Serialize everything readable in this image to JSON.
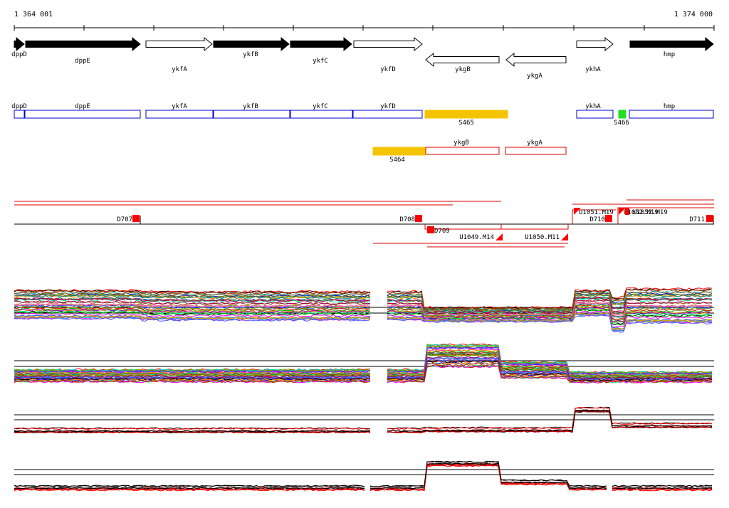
{
  "ruler": {
    "start_label": "1 364 001",
    "end_label": "1 374 000",
    "start_bp": 1364001,
    "end_bp": 1374000
  },
  "genes": [
    {
      "name": "dppD",
      "strand": "+",
      "fill": "black"
    },
    {
      "name": "dppE",
      "strand": "+",
      "fill": "black"
    },
    {
      "name": "ykfA",
      "strand": "+",
      "fill": "white"
    },
    {
      "name": "ykfB",
      "strand": "+",
      "fill": "black"
    },
    {
      "name": "ykfC",
      "strand": "+",
      "fill": "black"
    },
    {
      "name": "ykfD",
      "strand": "+",
      "fill": "white"
    },
    {
      "name": "ykgB",
      "strand": "-",
      "fill": "white"
    },
    {
      "name": "ykgA",
      "strand": "-",
      "fill": "white"
    },
    {
      "name": "ykhA",
      "strand": "+",
      "fill": "white"
    },
    {
      "name": "hmp",
      "strand": "+",
      "fill": "black"
    }
  ],
  "segments_row1": [
    {
      "name": "dppD",
      "color": "#0000cc"
    },
    {
      "name": "dppE",
      "color": "#0000cc"
    },
    {
      "name": "ykfA",
      "color": "#0000cc"
    },
    {
      "name": "ykfB",
      "color": "#0000cc"
    },
    {
      "name": "ykfC",
      "color": "#0000cc"
    },
    {
      "name": "ykfD",
      "color": "#0000cc"
    },
    {
      "name": "S465",
      "color": "#f5c400",
      "filled": true
    },
    {
      "name": "ykhA",
      "color": "#0000cc"
    },
    {
      "name": "S466",
      "color": "#22dd22",
      "filled": true
    },
    {
      "name": "hmp",
      "color": "#0000cc"
    }
  ],
  "segments_row2": [
    {
      "name": "S464",
      "color": "#f5c400",
      "filled": true
    },
    {
      "name": "ykgB",
      "color": "#dd0000"
    },
    {
      "name": "ykgA",
      "color": "#dd0000"
    }
  ],
  "features": [
    {
      "name": "D707"
    },
    {
      "name": "D708"
    },
    {
      "name": "D709"
    },
    {
      "name": "D710"
    },
    {
      "name": "D711"
    },
    {
      "name": "U1049.M14"
    },
    {
      "name": "U1050.M11"
    },
    {
      "name": "U1051.M19"
    },
    {
      "name": "U1052.M19"
    }
  ],
  "overlap_label": "U1052.M19",
  "colors": {
    "feature_red": "#ff0000",
    "line_red": "#dd0000",
    "s_yellow": "#f5c400",
    "s_green": "#22dd22",
    "seg_blue": "#0000cc"
  }
}
